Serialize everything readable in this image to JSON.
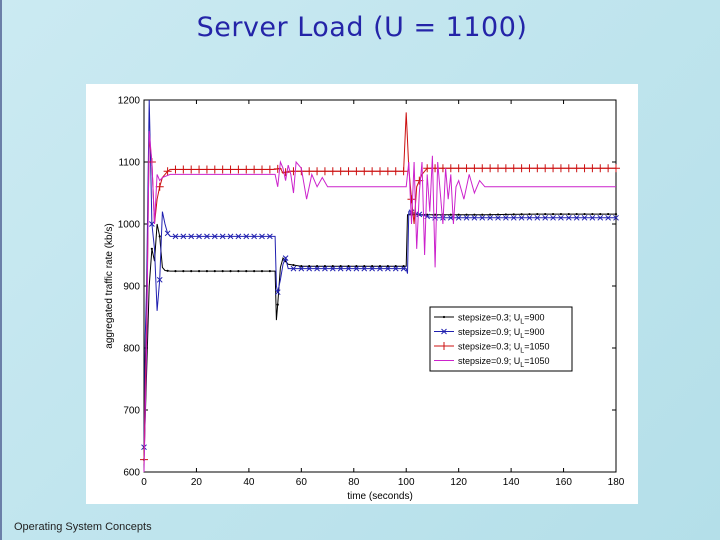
{
  "slide": {
    "title": "Server Load (U = 1100)",
    "footer": "Operating System Concepts"
  },
  "chart_data": {
    "type": "line",
    "title": "",
    "xlabel": "time (seconds)",
    "ylabel": "aggregated traffic rate (kb/s)",
    "xlim": [
      0,
      180
    ],
    "ylim": [
      600,
      1200
    ],
    "xticks": [
      0,
      20,
      40,
      60,
      80,
      100,
      120,
      140,
      160,
      180
    ],
    "yticks": [
      600,
      700,
      800,
      900,
      1000,
      1100,
      1200
    ],
    "grid": false,
    "legend_position": "lower-right",
    "series": [
      {
        "name": "stepsize=0.3; U_L=900",
        "color": "#000000",
        "marker": "dot",
        "points": [
          [
            0,
            620
          ],
          [
            1,
            760
          ],
          [
            2,
            900
          ],
          [
            3,
            960
          ],
          [
            4,
            940
          ],
          [
            5,
            1000
          ],
          [
            6,
            980
          ],
          [
            7,
            930
          ],
          [
            8,
            925
          ],
          [
            10,
            924
          ],
          [
            15,
            924
          ],
          [
            20,
            924
          ],
          [
            30,
            924
          ],
          [
            40,
            924
          ],
          [
            45,
            924
          ],
          [
            50,
            924
          ],
          [
            50.5,
            845
          ],
          [
            51,
            870
          ],
          [
            52,
            930
          ],
          [
            53,
            945
          ],
          [
            55,
            935
          ],
          [
            60,
            932
          ],
          [
            80,
            932
          ],
          [
            100,
            932
          ],
          [
            100.5,
            1015
          ],
          [
            110,
            1015
          ],
          [
            130,
            1015
          ],
          [
            150,
            1016
          ],
          [
            170,
            1016
          ],
          [
            180,
            1016
          ]
        ]
      },
      {
        "name": "stepsize=0.9; U_L=900",
        "color": "#2020b0",
        "marker": "x",
        "points": [
          [
            0,
            640
          ],
          [
            0.5,
            820
          ],
          [
            1,
            900
          ],
          [
            2,
            1200
          ],
          [
            2.5,
            1100
          ],
          [
            3,
            1000
          ],
          [
            4,
            960
          ],
          [
            5,
            860
          ],
          [
            6,
            910
          ],
          [
            7,
            1020
          ],
          [
            8,
            1000
          ],
          [
            9,
            985
          ],
          [
            10,
            980
          ],
          [
            20,
            980
          ],
          [
            30,
            980
          ],
          [
            40,
            980
          ],
          [
            45,
            980
          ],
          [
            50,
            980
          ],
          [
            50.5,
            900
          ],
          [
            51,
            890
          ],
          [
            52,
            910
          ],
          [
            53,
            935
          ],
          [
            54,
            945
          ],
          [
            55,
            928
          ],
          [
            60,
            928
          ],
          [
            80,
            928
          ],
          [
            100,
            928
          ],
          [
            100.5,
            920
          ],
          [
            101,
            1020
          ],
          [
            110,
            1010
          ],
          [
            130,
            1010
          ],
          [
            150,
            1010
          ],
          [
            170,
            1010
          ],
          [
            180,
            1010
          ]
        ]
      },
      {
        "name": "stepsize=0.3; U_L=1050",
        "color": "#cc1010",
        "marker": "+",
        "points": [
          [
            0,
            620
          ],
          [
            0.5,
            740
          ],
          [
            1,
            830
          ],
          [
            2,
            1140
          ],
          [
            3,
            1100
          ],
          [
            4,
            1000
          ],
          [
            5,
            1040
          ],
          [
            6,
            1060
          ],
          [
            7,
            1075
          ],
          [
            8,
            1080
          ],
          [
            9,
            1085
          ],
          [
            10,
            1088
          ],
          [
            20,
            1088
          ],
          [
            30,
            1088
          ],
          [
            40,
            1088
          ],
          [
            50,
            1088
          ],
          [
            52,
            1090
          ],
          [
            53,
            1082
          ],
          [
            55,
            1085
          ],
          [
            60,
            1085
          ],
          [
            80,
            1085
          ],
          [
            98,
            1085
          ],
          [
            99,
            1085
          ],
          [
            100,
            1180
          ],
          [
            101,
            1090
          ],
          [
            102,
            1040
          ],
          [
            103,
            1000
          ],
          [
            104,
            1060
          ],
          [
            106,
            1080
          ],
          [
            108,
            1090
          ],
          [
            110,
            1090
          ],
          [
            130,
            1090
          ],
          [
            150,
            1090
          ],
          [
            180,
            1090
          ]
        ]
      },
      {
        "name": "stepsize=0.9; U_L=1050",
        "color": "#cc22cc",
        "marker": "none",
        "points": [
          [
            0,
            600
          ],
          [
            1,
            800
          ],
          [
            2,
            1150
          ],
          [
            3,
            1100
          ],
          [
            4,
            1000
          ],
          [
            5,
            1080
          ],
          [
            6,
            1070
          ],
          [
            7,
            1075
          ],
          [
            10,
            1080
          ],
          [
            20,
            1080
          ],
          [
            40,
            1080
          ],
          [
            50,
            1080
          ],
          [
            51,
            1060
          ],
          [
            52,
            1100
          ],
          [
            53,
            1090
          ],
          [
            54,
            1070
          ],
          [
            55,
            1095
          ],
          [
            56,
            1080
          ],
          [
            57,
            1050
          ],
          [
            58,
            1100
          ],
          [
            60,
            1090
          ],
          [
            62,
            1040
          ],
          [
            64,
            1080
          ],
          [
            66,
            1060
          ],
          [
            68,
            1075
          ],
          [
            70,
            1060
          ],
          [
            80,
            1060
          ],
          [
            98,
            1060
          ],
          [
            100,
            1060
          ],
          [
            101,
            1100
          ],
          [
            102,
            1000
          ],
          [
            103,
            1100
          ],
          [
            104,
            960
          ],
          [
            105,
            1050
          ],
          [
            106,
            1100
          ],
          [
            107,
            950
          ],
          [
            108,
            1080
          ],
          [
            109,
            1020
          ],
          [
            110,
            1110
          ],
          [
            111,
            930
          ],
          [
            112,
            1100
          ],
          [
            113,
            1050
          ],
          [
            114,
            1000
          ],
          [
            115,
            1090
          ],
          [
            116,
            1040
          ],
          [
            117,
            1080
          ],
          [
            118,
            1000
          ],
          [
            119,
            1060
          ],
          [
            120,
            1070
          ],
          [
            122,
            1040
          ],
          [
            124,
            1080
          ],
          [
            126,
            1050
          ],
          [
            128,
            1070
          ],
          [
            130,
            1060
          ],
          [
            140,
            1060
          ],
          [
            160,
            1060
          ],
          [
            180,
            1060
          ]
        ]
      }
    ]
  }
}
